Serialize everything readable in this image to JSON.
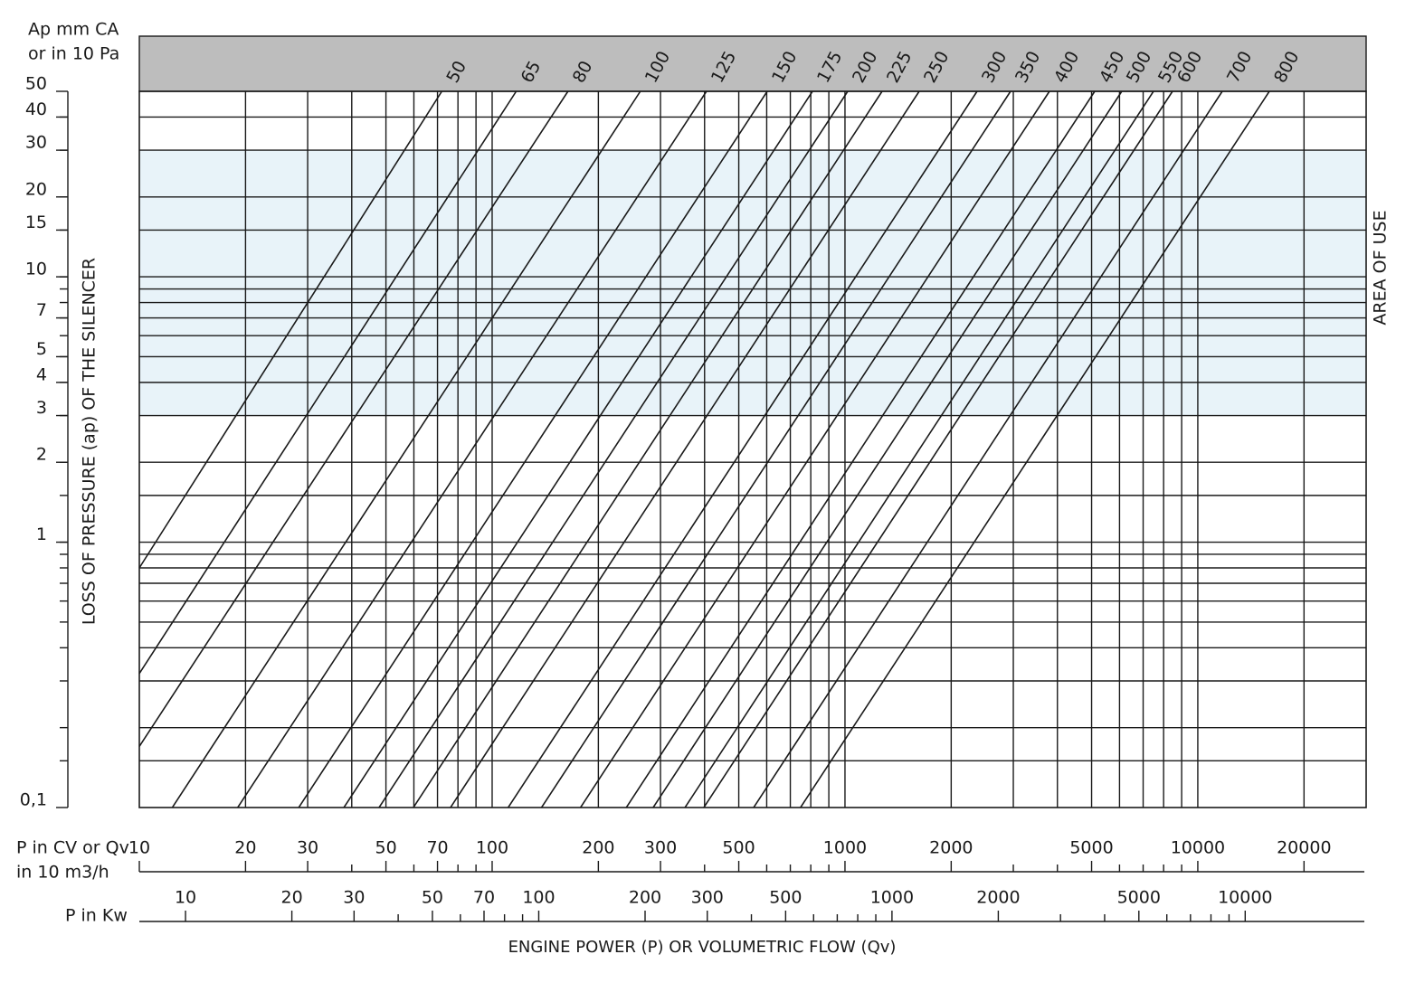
{
  "chart_data": {
    "type": "line",
    "y_label_lines": [
      "Ap mm CA",
      "or in 10 Pa"
    ],
    "y_title": "LOSS OF PRESSURE (ap) OF THE SILENCER",
    "x_label_lines": [
      "P in CV or Qv",
      "in 10 m3/h"
    ],
    "x2_label": "P in Kw",
    "x_title": "ENGINE POWER (P) OR VOLUMETRIC FLOW (Qv)",
    "area_of_use": {
      "label": "AREA OF USE",
      "range": [
        3,
        30
      ],
      "color": "#e8f3f9"
    },
    "header_color": "#bdbdbd",
    "xlog": true,
    "ylog": true,
    "xlim": [
      10,
      30000
    ],
    "ylim": [
      0.1,
      50
    ],
    "xticks": [
      10,
      20,
      30,
      50,
      70,
      100,
      200,
      300,
      500,
      1000,
      2000,
      5000,
      10000,
      20000
    ],
    "xminor": [
      40,
      60,
      80,
      90,
      400,
      600,
      700,
      800,
      900,
      3000,
      4000,
      6000,
      7000,
      8000,
      9000
    ],
    "xgrid": [
      20,
      30,
      40,
      50,
      60,
      70,
      80,
      90,
      100,
      200,
      300,
      400,
      500,
      600,
      700,
      800,
      900,
      1000,
      2000,
      3000,
      4000,
      5000,
      6000,
      7000,
      8000,
      9000,
      10000,
      20000
    ],
    "x2lim": [
      7.4,
      22000
    ],
    "x2ticks": [
      10,
      20,
      30,
      50,
      70,
      100,
      200,
      300,
      500,
      1000,
      2000,
      5000,
      10000
    ],
    "x2minor": [
      40,
      60,
      80,
      90,
      400,
      600,
      700,
      800,
      900,
      3000,
      4000,
      6000,
      7000,
      8000,
      9000
    ],
    "yticks": [
      50,
      40,
      30,
      20,
      15,
      10,
      7,
      5,
      4,
      3,
      2,
      1,
      {
        "value": 0.1,
        "label": "0,1"
      }
    ],
    "ygrid": [
      40,
      30,
      20,
      15,
      10,
      9,
      8,
      7,
      6,
      5,
      4,
      3,
      2,
      1.5,
      1,
      0.9,
      0.8,
      0.7,
      0.6,
      0.5,
      0.4,
      0.3,
      0.2,
      0.15
    ],
    "series": [
      {
        "name": "50",
        "color": "#1a1a1a",
        "x": [
          10,
          72
        ],
        "y": [
          0.8,
          50
        ]
      },
      {
        "name": "65",
        "color": "#1a1a1a",
        "x": [
          10,
          117
        ],
        "y": [
          0.32,
          50
        ]
      },
      {
        "name": "80",
        "color": "#1a1a1a",
        "x": [
          10,
          164
        ],
        "y": [
          0.17,
          50
        ]
      },
      {
        "name": "100",
        "color": "#1a1a1a",
        "x": [
          12.4,
          263
        ],
        "y": [
          0.1,
          50
        ]
      },
      {
        "name": "125",
        "color": "#1a1a1a",
        "x": [
          19,
          405
        ],
        "y": [
          0.1,
          50
        ]
      },
      {
        "name": "150",
        "color": "#1a1a1a",
        "x": [
          28.3,
          602
        ],
        "y": [
          0.1,
          50
        ]
      },
      {
        "name": "175",
        "color": "#1a1a1a",
        "x": [
          38,
          809
        ],
        "y": [
          0.1,
          50
        ]
      },
      {
        "name": "200",
        "color": "#1a1a1a",
        "x": [
          47.8,
          1018
        ],
        "y": [
          0.1,
          50
        ]
      },
      {
        "name": "225",
        "color": "#1a1a1a",
        "x": [
          59.8,
          1274
        ],
        "y": [
          0.1,
          50
        ]
      },
      {
        "name": "250",
        "color": "#1a1a1a",
        "x": [
          76.2,
          1623
        ],
        "y": [
          0.1,
          50
        ]
      },
      {
        "name": "300",
        "color": "#1a1a1a",
        "x": [
          111,
          2368
        ],
        "y": [
          0.1,
          50
        ]
      },
      {
        "name": "350",
        "color": "#1a1a1a",
        "x": [
          138,
          2946
        ],
        "y": [
          0.1,
          50
        ]
      },
      {
        "name": "400",
        "color": "#1a1a1a",
        "x": [
          178,
          3797
        ],
        "y": [
          0.1,
          50
        ]
      },
      {
        "name": "450",
        "color": "#1a1a1a",
        "x": [
          240,
          5103
        ],
        "y": [
          0.1,
          50
        ]
      },
      {
        "name": "500",
        "color": "#1a1a1a",
        "x": [
          286,
          6088
        ],
        "y": [
          0.1,
          50
        ]
      },
      {
        "name": "550",
        "color": "#1a1a1a",
        "x": [
          352,
          7488
        ],
        "y": [
          0.1,
          50
        ]
      },
      {
        "name": "600",
        "color": "#1a1a1a",
        "x": [
          398,
          8477
        ],
        "y": [
          0.1,
          50
        ]
      },
      {
        "name": "700",
        "color": "#1a1a1a",
        "x": [
          551,
          11730
        ],
        "y": [
          0.1,
          50
        ]
      },
      {
        "name": "800",
        "color": "#1a1a1a",
        "x": [
          748,
          15950
        ],
        "y": [
          0.1,
          50
        ]
      }
    ]
  }
}
